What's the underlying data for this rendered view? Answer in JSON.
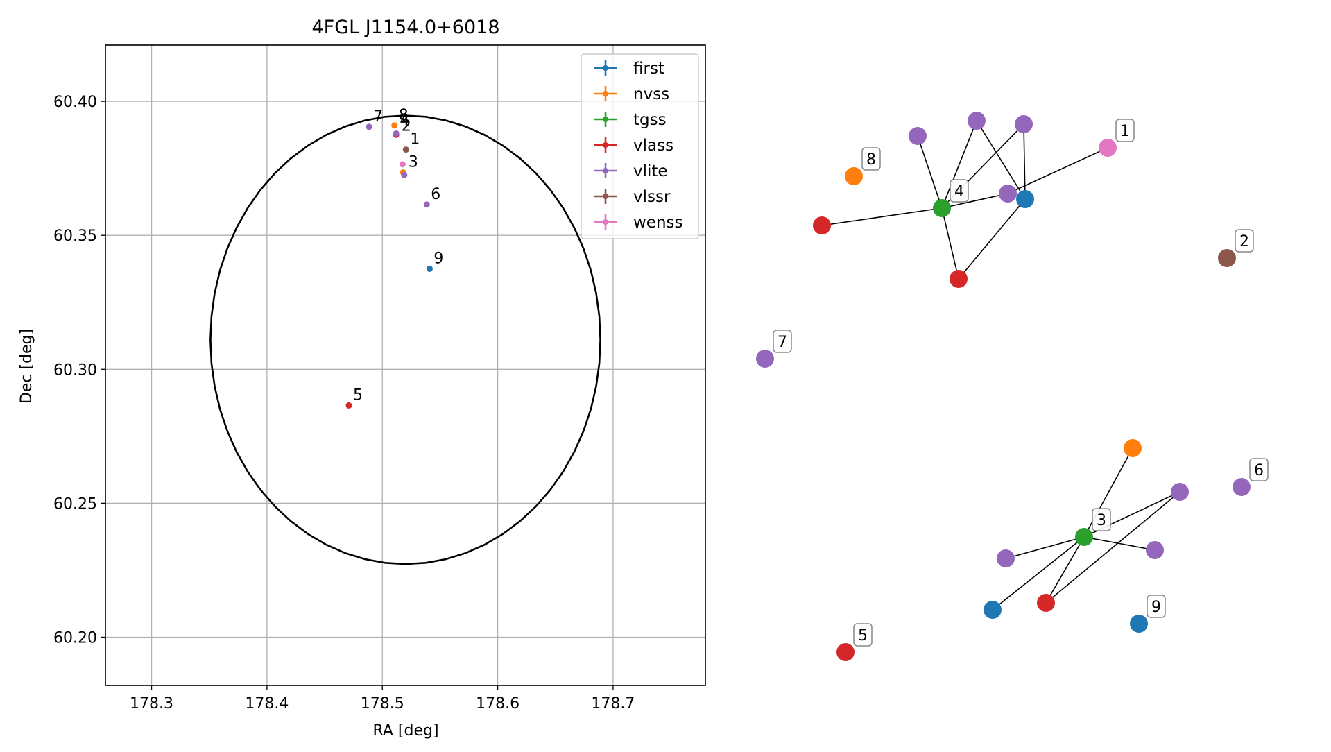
{
  "chart_data": [
    {
      "type": "scatter",
      "title": "4FGL J1154.0+6018",
      "xlabel": "RA [deg]",
      "ylabel": "Dec [deg]",
      "xlim": [
        178.26,
        178.78
      ],
      "ylim": [
        60.182,
        60.421
      ],
      "xticks": [
        178.3,
        178.4,
        178.5,
        178.6,
        178.7
      ],
      "xtick_labels": [
        "178.3",
        "178.4",
        "178.5",
        "178.6",
        "178.7"
      ],
      "yticks": [
        60.2,
        60.25,
        60.3,
        60.35,
        60.4
      ],
      "ytick_labels": [
        "60.20",
        "60.25",
        "60.30",
        "60.35",
        "60.40"
      ],
      "grid": true,
      "legend_position": "top-right",
      "circle": {
        "center": [
          178.52,
          60.311
        ],
        "radius_deg": 0.0837
      },
      "series": [
        {
          "name": "first",
          "color": "#1f77b4",
          "points": [
            [
              178.541,
              60.3375
            ]
          ]
        },
        {
          "name": "nvss",
          "color": "#ff7f0e",
          "points": [
            [
              178.5105,
              60.391
            ],
            [
              178.518,
              60.3735
            ]
          ]
        },
        {
          "name": "tgss",
          "color": "#2ca02c",
          "points": []
        },
        {
          "name": "vlass",
          "color": "#d62728",
          "points": [
            [
              178.471,
              60.2865
            ],
            [
              178.512,
              60.3875
            ]
          ]
        },
        {
          "name": "vlite",
          "color": "#9467bd",
          "points": [
            [
              178.4885,
              60.3905
            ],
            [
              178.512,
              60.388
            ],
            [
              178.5385,
              60.3615
            ],
            [
              178.519,
              60.3725
            ]
          ]
        },
        {
          "name": "vlssr",
          "color": "#8c564b",
          "points": [
            [
              178.5205,
              60.382
            ]
          ]
        },
        {
          "name": "wenss",
          "color": "#e377c2",
          "points": [
            [
              178.5175,
              60.3765
            ]
          ]
        }
      ],
      "point_labels": [
        {
          "text": "1",
          "x": 178.5205,
          "y": 60.382
        },
        {
          "text": "2",
          "x": 178.513,
          "y": 60.387
        },
        {
          "text": "3",
          "x": 178.519,
          "y": 60.3735
        },
        {
          "text": "4",
          "x": 178.5115,
          "y": 60.389
        },
        {
          "text": "5",
          "x": 178.471,
          "y": 60.2865
        },
        {
          "text": "6",
          "x": 178.5385,
          "y": 60.3615
        },
        {
          "text": "7",
          "x": 178.4885,
          "y": 60.3905
        },
        {
          "text": "8",
          "x": 178.5105,
          "y": 60.391
        },
        {
          "text": "9",
          "x": 178.541,
          "y": 60.3375
        }
      ]
    },
    {
      "type": "network",
      "labels": [
        "1",
        "2",
        "3",
        "4",
        "5",
        "6",
        "7",
        "8",
        "9"
      ],
      "nodes": [
        {
          "id": "a1",
          "color": "#d62728"
        },
        {
          "id": "a2",
          "color": "#2ca02c",
          "label": "4"
        },
        {
          "id": "a3",
          "color": "#9467bd"
        },
        {
          "id": "a4",
          "color": "#9467bd"
        },
        {
          "id": "a5",
          "color": "#9467bd"
        },
        {
          "id": "a6",
          "color": "#9467bd"
        },
        {
          "id": "a7",
          "color": "#1f77b4"
        },
        {
          "id": "a8",
          "color": "#d62728"
        },
        {
          "id": "a9",
          "color": "#e377c2",
          "label": "1"
        },
        {
          "id": "b1",
          "color": "#ff7f0e"
        },
        {
          "id": "b2",
          "color": "#2ca02c",
          "label": "3"
        },
        {
          "id": "b3",
          "color": "#9467bd"
        },
        {
          "id": "b4",
          "color": "#9467bd"
        },
        {
          "id": "b5",
          "color": "#9467bd"
        },
        {
          "id": "b6",
          "color": "#d62728"
        },
        {
          "id": "b7",
          "color": "#1f77b4"
        },
        {
          "id": "n8",
          "color": "#ff7f0e",
          "label": "8"
        },
        {
          "id": "n2",
          "color": "#8c564b",
          "label": "2"
        },
        {
          "id": "n7",
          "color": "#9467bd",
          "label": "7"
        },
        {
          "id": "n6",
          "color": "#9467bd",
          "label": "6"
        },
        {
          "id": "n9",
          "color": "#1f77b4",
          "label": "9"
        },
        {
          "id": "n5",
          "color": "#d62728",
          "label": "5"
        }
      ],
      "edges": [
        [
          "a1",
          "a2"
        ],
        [
          "a2",
          "a3"
        ],
        [
          "a2",
          "a4"
        ],
        [
          "a2",
          "a5"
        ],
        [
          "a2",
          "a6"
        ],
        [
          "a2",
          "a8"
        ],
        [
          "a4",
          "a7"
        ],
        [
          "a5",
          "a7"
        ],
        [
          "a7",
          "a8"
        ],
        [
          "a6",
          "a9"
        ],
        [
          "b1",
          "b2"
        ],
        [
          "b2",
          "b3"
        ],
        [
          "b2",
          "b4"
        ],
        [
          "b2",
          "b5"
        ],
        [
          "b2",
          "b6"
        ],
        [
          "b2",
          "b7"
        ],
        [
          "b5",
          "b6"
        ]
      ]
    }
  ]
}
